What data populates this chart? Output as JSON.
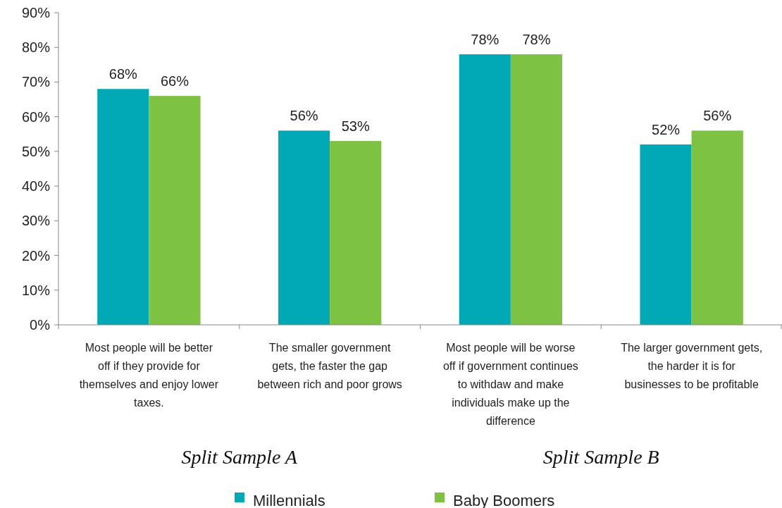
{
  "chart_data": {
    "type": "bar",
    "categories": [
      "Most people will be better off if they provide for themselves and enjoy lower taxes.",
      "The smaller government gets, the faster the gap between rich and poor grows",
      "Most people will be worse off if government continues to withdaw and make individuals make up the difference",
      "The larger government gets, the harder it is for businesses to be profitable"
    ],
    "series": [
      {
        "name": "Millennials",
        "color": "#00a9b5",
        "values": [
          68,
          56,
          78,
          52
        ]
      },
      {
        "name": "Baby Boomers",
        "color": "#7dc243",
        "values": [
          66,
          53,
          78,
          56
        ]
      }
    ],
    "ylim": [
      0,
      90
    ],
    "yticks": [
      {
        "value": 0,
        "label": "0%"
      },
      {
        "value": 10,
        "label": "10%"
      },
      {
        "value": 20,
        "label": "20%"
      },
      {
        "value": 30,
        "label": "30%"
      },
      {
        "value": 40,
        "label": "40%"
      },
      {
        "value": 50,
        "label": "50%"
      },
      {
        "value": 60,
        "label": "60%"
      },
      {
        "value": 70,
        "label": "70%"
      },
      {
        "value": 80,
        "label": "80%"
      },
      {
        "value": 90,
        "label": "90%"
      }
    ],
    "value_labels": [
      [
        "68%",
        "56%",
        "78%",
        "52%"
      ],
      [
        "66%",
        "53%",
        "78%",
        "56%"
      ]
    ],
    "annotations": [
      "Split Sample A",
      "Split Sample B"
    ],
    "grid": false,
    "legend": "bottom"
  }
}
